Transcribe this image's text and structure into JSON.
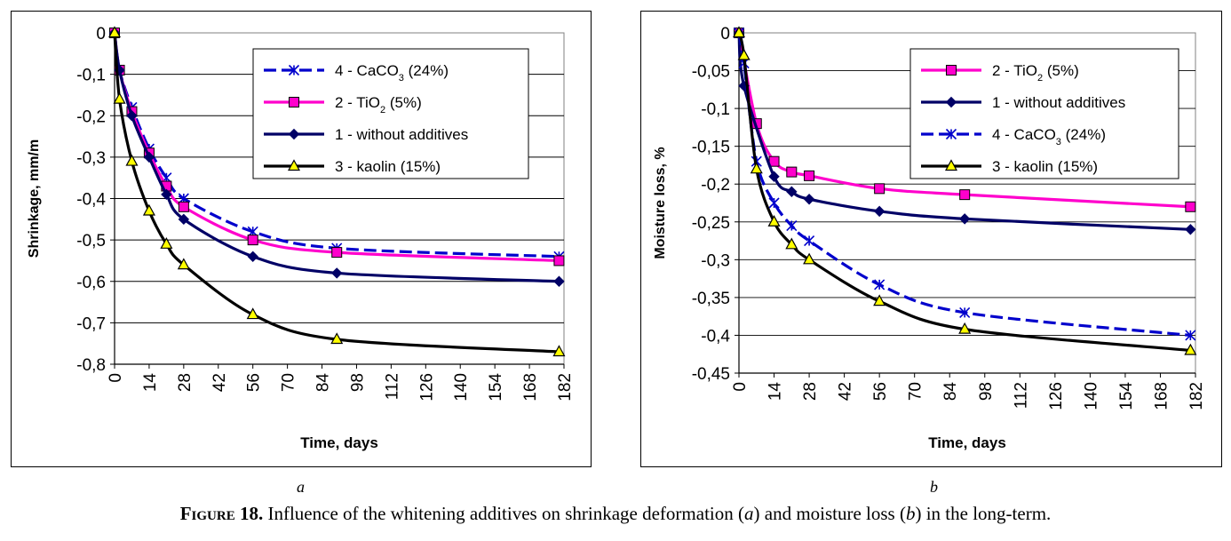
{
  "chart_data": [
    {
      "type": "line",
      "panel_label": "a",
      "xlabel": "Time, days",
      "ylabel": "Shrinkage, mm/m",
      "xlim": [
        0,
        182
      ],
      "ylim": [
        -0.8,
        0
      ],
      "x_ticks": [
        "0",
        "14",
        "28",
        "42",
        "56",
        "70",
        "84",
        "98",
        "112",
        "126",
        "140",
        "154",
        "168",
        "182"
      ],
      "y_ticks": [
        "0",
        "-0,1",
        "-0,2",
        "-0,3",
        "-0,4",
        "-0,5",
        "-0,6",
        "-0,7",
        "-0,8"
      ],
      "grid": "horizontal",
      "legend_position": "top-right",
      "series": [
        {
          "name": "4 - CaCO₃ (24%)",
          "color": "#0000cc",
          "dash": true,
          "marker": "asterisk",
          "x": [
            0,
            2,
            7,
            14,
            21,
            28,
            56,
            90,
            180
          ],
          "y": [
            0,
            -0.09,
            -0.18,
            -0.28,
            -0.35,
            -0.4,
            -0.48,
            -0.52,
            -0.54
          ]
        },
        {
          "name": "2 - TiO₂ (5%)",
          "color": "#ff00cc",
          "dash": false,
          "marker": "square",
          "x": [
            0,
            2,
            7,
            14,
            21,
            28,
            56,
            90,
            180
          ],
          "y": [
            0,
            -0.09,
            -0.19,
            -0.29,
            -0.37,
            -0.42,
            -0.5,
            -0.53,
            -0.55
          ]
        },
        {
          "name": "1 - without additives",
          "color": "#000066",
          "dash": false,
          "marker": "diamond",
          "x": [
            0,
            2,
            7,
            14,
            21,
            28,
            56,
            90,
            180
          ],
          "y": [
            0,
            -0.09,
            -0.2,
            -0.3,
            -0.39,
            -0.45,
            -0.54,
            -0.58,
            -0.6
          ]
        },
        {
          "name": "3 - kaolin (15%)",
          "color": "#000000",
          "dash": false,
          "marker": "triangle",
          "x": [
            0,
            2,
            7,
            14,
            21,
            28,
            56,
            90,
            180
          ],
          "y": [
            0,
            -0.16,
            -0.31,
            -0.43,
            -0.51,
            -0.56,
            -0.68,
            -0.74,
            -0.77
          ]
        }
      ]
    },
    {
      "type": "line",
      "panel_label": "b",
      "xlabel": "Time, days",
      "ylabel": "Moisture loss, %",
      "xlim": [
        0,
        182
      ],
      "ylim": [
        -0.45,
        0
      ],
      "x_ticks": [
        "0",
        "14",
        "28",
        "42",
        "56",
        "70",
        "84",
        "98",
        "112",
        "126",
        "140",
        "154",
        "168",
        "182"
      ],
      "y_ticks": [
        "0",
        "-0,05",
        "-0,1",
        "-0,15",
        "-0,2",
        "-0,25",
        "-0,3",
        "-0,35",
        "-0,4",
        "-0,45"
      ],
      "grid": "horizontal",
      "legend_position": "top-right",
      "series": [
        {
          "name": "2 - TiO₂ (5%)",
          "color": "#ff00cc",
          "dash": false,
          "marker": "square",
          "x": [
            0,
            7,
            14,
            21,
            28,
            56,
            90,
            180
          ],
          "y": [
            0,
            -0.12,
            -0.17,
            -0.184,
            -0.189,
            -0.206,
            -0.214,
            -0.23
          ]
        },
        {
          "name": "1 - without additives",
          "color": "#000066",
          "dash": false,
          "marker": "diamond",
          "x": [
            0,
            2,
            14,
            21,
            28,
            56,
            90,
            180
          ],
          "y": [
            0,
            -0.07,
            -0.19,
            -0.21,
            -0.22,
            -0.236,
            -0.246,
            -0.26
          ]
        },
        {
          "name": "4 - CaCO₃ (24%)",
          "color": "#0000cc",
          "dash": true,
          "marker": "asterisk",
          "x": [
            0,
            2,
            7,
            14,
            21,
            28,
            56,
            90,
            180
          ],
          "y": [
            0,
            -0.04,
            -0.17,
            -0.225,
            -0.255,
            -0.275,
            -0.333,
            -0.37,
            -0.4
          ]
        },
        {
          "name": "3 - kaolin (15%)",
          "color": "#000000",
          "dash": false,
          "marker": "triangle",
          "x": [
            0,
            2,
            7,
            14,
            21,
            28,
            56,
            90,
            180
          ],
          "y": [
            0,
            -0.03,
            -0.18,
            -0.25,
            -0.28,
            -0.3,
            -0.355,
            -0.392,
            -0.42
          ]
        }
      ]
    }
  ],
  "caption": {
    "prefix": "Figure 18.",
    "text_1": " Influence of the whitening additives on shrinkage deformation  (",
    "italic_a": "a",
    "text_2": ") and moisture loss (",
    "italic_b": "b",
    "text_3": ") in the long-term."
  }
}
